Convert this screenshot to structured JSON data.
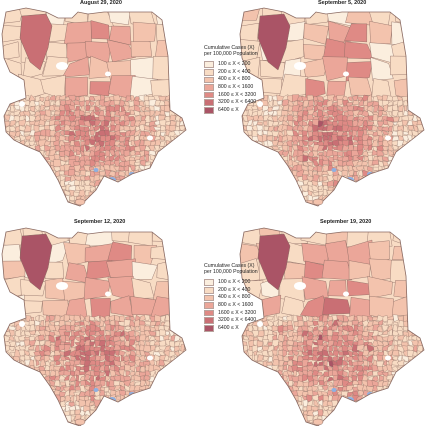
{
  "panels": [
    {
      "title": "August 29, 2020"
    },
    {
      "title": "September 5, 2020"
    },
    {
      "title": "September 12, 2020"
    },
    {
      "title": "September 19, 2020"
    }
  ],
  "legend": {
    "title_line1": "Cumulative Cases (X)",
    "title_line2": "per 100,000 Population",
    "classes": [
      {
        "label": "100 ≤ X < 200",
        "color": "#fbeede"
      },
      {
        "label": "200 ≤ X < 400",
        "color": "#f8dcc4"
      },
      {
        "label": "400 ≤ X < 800",
        "color": "#f3c3ad"
      },
      {
        "label": "800 ≤ X < 1600",
        "color": "#eba699"
      },
      {
        "label": "1600 ≤ X < 3200",
        "color": "#df8a85"
      },
      {
        "label": "3200 ≤ X < 6400",
        "color": "#c96f74"
      },
      {
        "label": "6400 ≤ X",
        "color": "#aa5466"
      }
    ]
  },
  "colors": {
    "border": "#8a6a62",
    "water": "#8fb0e0"
  }
}
